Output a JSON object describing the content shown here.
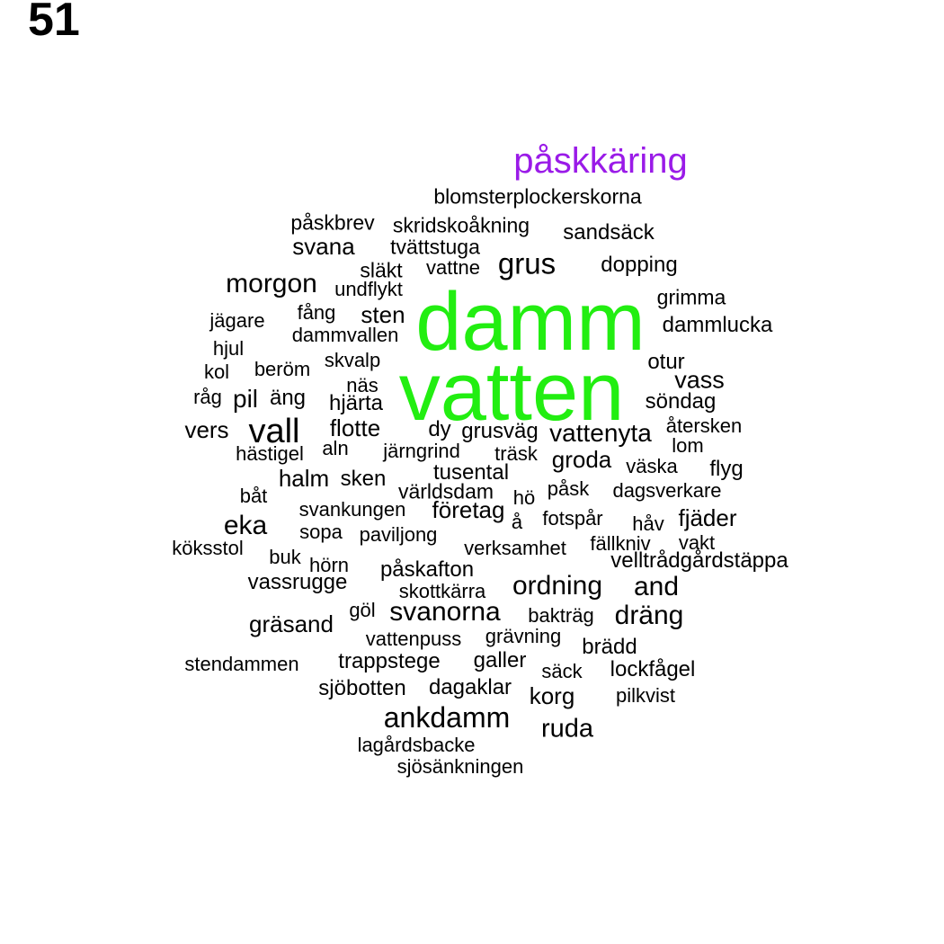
{
  "panel_number": "51",
  "colors": {
    "highlight_primary": "#22ee11",
    "highlight_secondary": "#9a1be8",
    "default": "#000000"
  },
  "words": [
    {
      "text": "damm",
      "color": "#22ee11"
    },
    {
      "text": "vatten",
      "color": "#22ee11"
    },
    {
      "text": "påskkäring",
      "color": "#9a1be8"
    },
    {
      "text": "blomsterplockerskorna"
    },
    {
      "text": "påskbrev"
    },
    {
      "text": "skridskoåkning"
    },
    {
      "text": "sandsäck"
    },
    {
      "text": "svana"
    },
    {
      "text": "tvättstuga"
    },
    {
      "text": "grus"
    },
    {
      "text": "släkt"
    },
    {
      "text": "vattne"
    },
    {
      "text": "dopping"
    },
    {
      "text": "morgon"
    },
    {
      "text": "undflykt"
    },
    {
      "text": "grimma"
    },
    {
      "text": "fång"
    },
    {
      "text": "sten"
    },
    {
      "text": "jägare"
    },
    {
      "text": "dammvallen"
    },
    {
      "text": "dammlucka"
    },
    {
      "text": "hjul"
    },
    {
      "text": "skvalp"
    },
    {
      "text": "otur"
    },
    {
      "text": "kol"
    },
    {
      "text": "beröm"
    },
    {
      "text": "näs"
    },
    {
      "text": "vass"
    },
    {
      "text": "råg"
    },
    {
      "text": "pil"
    },
    {
      "text": "äng"
    },
    {
      "text": "hjärta"
    },
    {
      "text": "söndag"
    },
    {
      "text": "vers"
    },
    {
      "text": "vall"
    },
    {
      "text": "flotte"
    },
    {
      "text": "dy"
    },
    {
      "text": "grusväg"
    },
    {
      "text": "vattenyta"
    },
    {
      "text": "återsken"
    },
    {
      "text": "lom"
    },
    {
      "text": "hästigel"
    },
    {
      "text": "aln"
    },
    {
      "text": "järngrind"
    },
    {
      "text": "träsk"
    },
    {
      "text": "groda"
    },
    {
      "text": "väska"
    },
    {
      "text": "flyg"
    },
    {
      "text": "halm"
    },
    {
      "text": "sken"
    },
    {
      "text": "tusental"
    },
    {
      "text": "båt"
    },
    {
      "text": "världsdam"
    },
    {
      "text": "hö"
    },
    {
      "text": "påsk"
    },
    {
      "text": "dagsverkare"
    },
    {
      "text": "svankungen"
    },
    {
      "text": "företag"
    },
    {
      "text": "eka"
    },
    {
      "text": "å"
    },
    {
      "text": "fotspår"
    },
    {
      "text": "håv"
    },
    {
      "text": "fjäder"
    },
    {
      "text": "sopa"
    },
    {
      "text": "paviljong"
    },
    {
      "text": "köksstol"
    },
    {
      "text": "verksamhet"
    },
    {
      "text": "fällkniv"
    },
    {
      "text": "vakt"
    },
    {
      "text": "buk"
    },
    {
      "text": "velltrådgårdstäppa"
    },
    {
      "text": "hörn"
    },
    {
      "text": "påskafton"
    },
    {
      "text": "vassrugge"
    },
    {
      "text": "ordning"
    },
    {
      "text": "and"
    },
    {
      "text": "skottkärra"
    },
    {
      "text": "göl"
    },
    {
      "text": "svanorna"
    },
    {
      "text": "bakträg"
    },
    {
      "text": "dräng"
    },
    {
      "text": "gräsand"
    },
    {
      "text": "vattenpuss"
    },
    {
      "text": "grävning"
    },
    {
      "text": "brädd"
    },
    {
      "text": "stendammen"
    },
    {
      "text": "trappstege"
    },
    {
      "text": "galler"
    },
    {
      "text": "säck"
    },
    {
      "text": "lockfågel"
    },
    {
      "text": "sjöbotten"
    },
    {
      "text": "dagaklar"
    },
    {
      "text": "korg"
    },
    {
      "text": "pilkvist"
    },
    {
      "text": "ankdamm"
    },
    {
      "text": "ruda"
    },
    {
      "text": "lagårdsbacke"
    },
    {
      "text": "sjösänkningen"
    }
  ]
}
